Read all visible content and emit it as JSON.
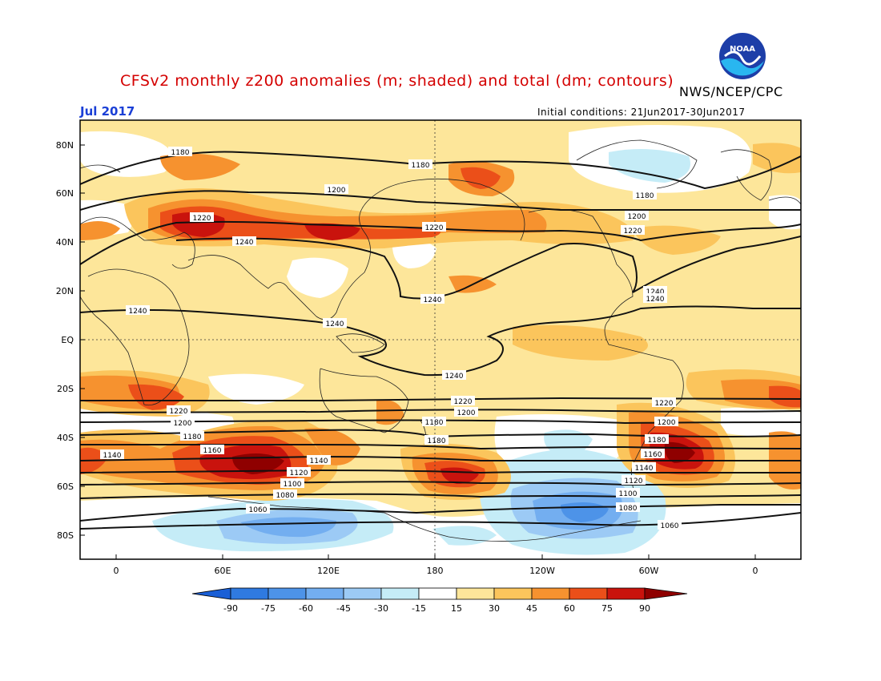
{
  "header": {
    "title": "CFSv2 monthly z200 anomalies (m; shaded) and total (dm; contours)",
    "agency": "NWS/NCEP/CPC",
    "month": "Jul 2017",
    "initial_conditions": "Initial conditions: 21Jun2017-30Jun2017",
    "logo_icon": "noaa-logo-icon"
  },
  "map": {
    "lat_labels": [
      "80N",
      "60N",
      "40N",
      "20N",
      "EQ",
      "20S",
      "40S",
      "60S",
      "80S"
    ],
    "lon_labels": [
      "0",
      "60E",
      "120E",
      "180",
      "120W",
      "60W",
      "0"
    ],
    "contour_labels": [
      "1060",
      "1080",
      "1100",
      "1120",
      "1140",
      "1160",
      "1180",
      "1200",
      "1220",
      "1240"
    ]
  },
  "colorbar": {
    "labels": [
      "-90",
      "-75",
      "-60",
      "-45",
      "-30",
      "-15",
      "15",
      "30",
      "45",
      "60",
      "75",
      "90"
    ],
    "colors": [
      "#1a5fd6",
      "#2f7ae0",
      "#4d93e8",
      "#73aef0",
      "#9ccaf5",
      "#c5ecf7",
      "#ffffff",
      "#fde69a",
      "#fbc55c",
      "#f6922f",
      "#eb4f19",
      "#c9130d",
      "#8f0000"
    ]
  }
}
